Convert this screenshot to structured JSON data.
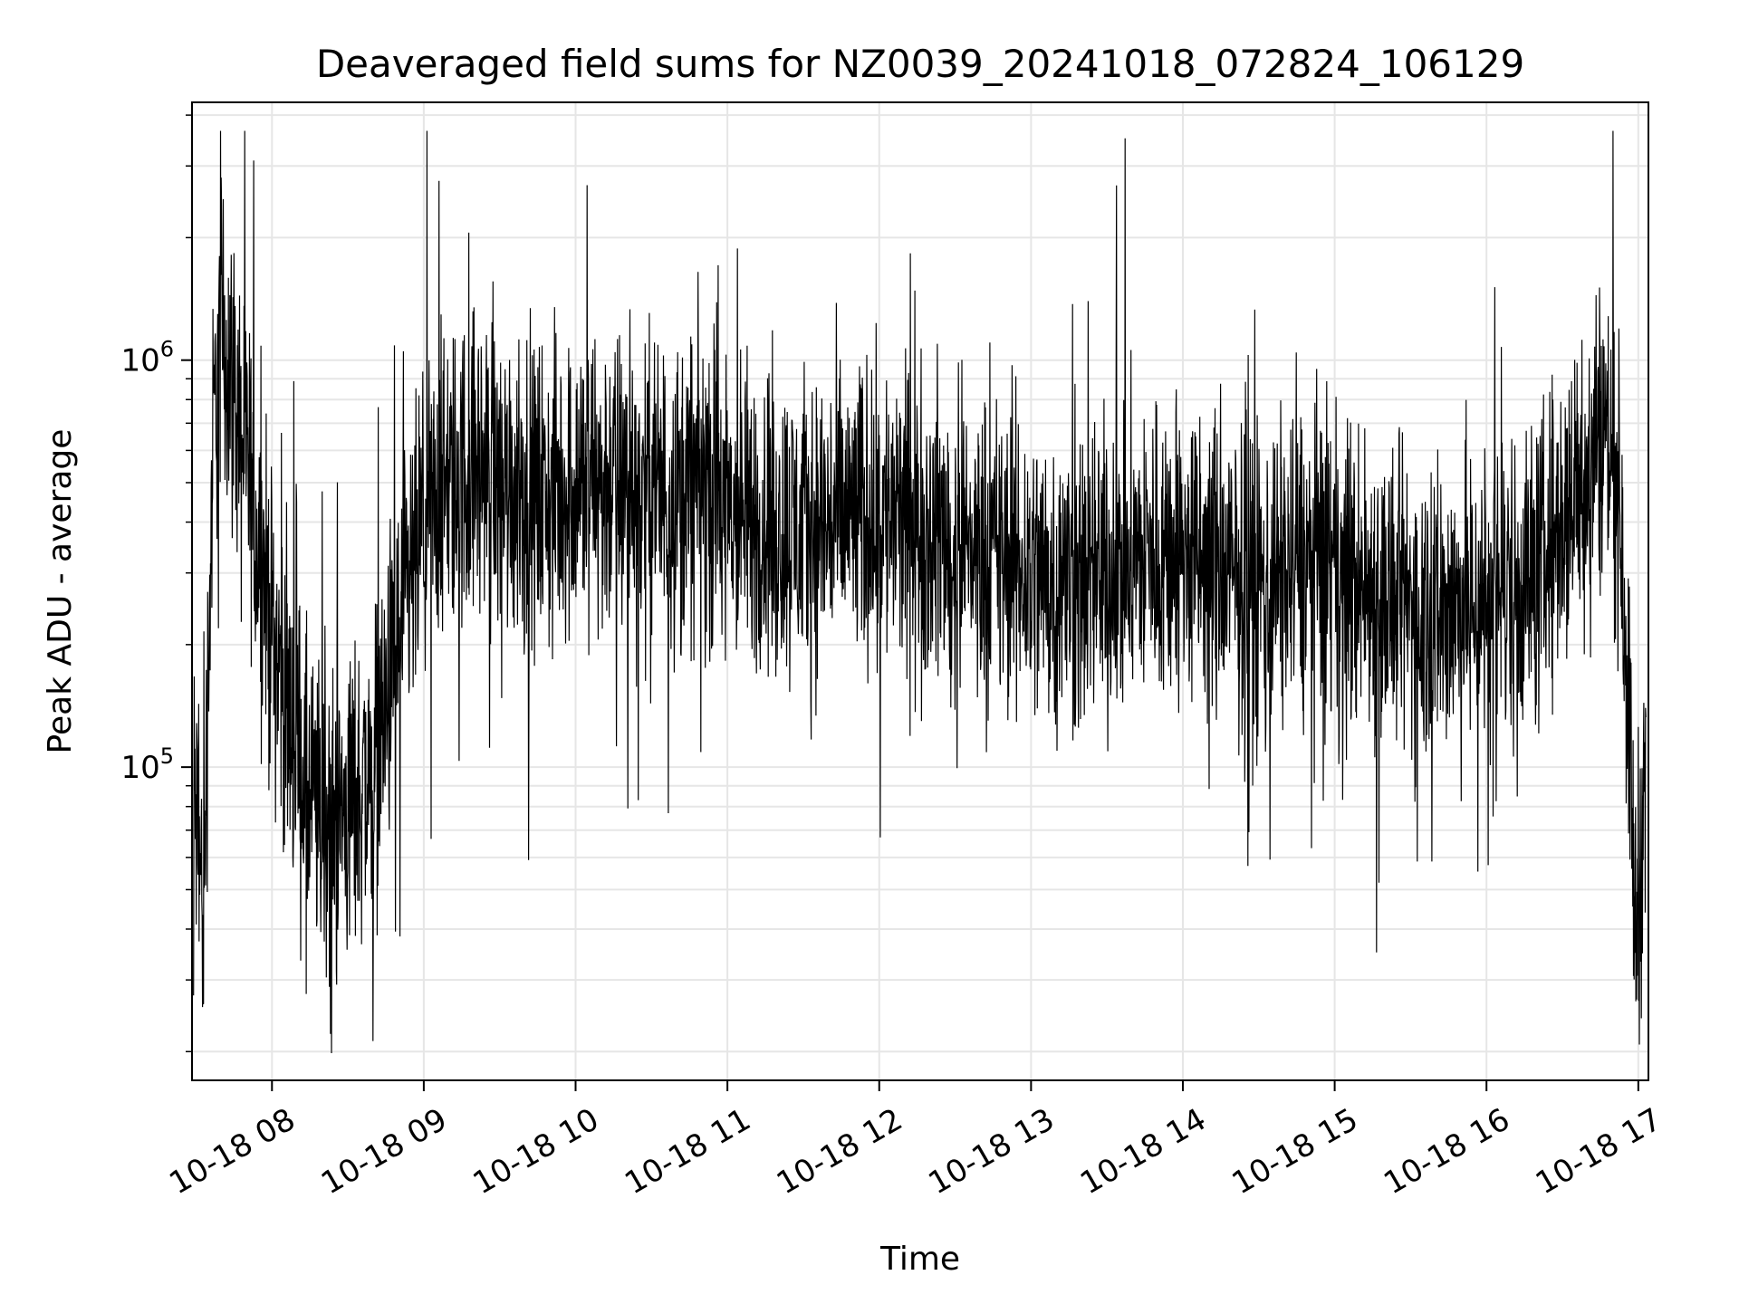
{
  "chart_data": {
    "type": "line",
    "title": "Deaveraged field sums for NZ0039_20241018_072824_106129",
    "xlabel": "Time",
    "ylabel": "Peak ADU - average",
    "yscale": "log",
    "ylim": [
      17000,
      4300000
    ],
    "xlim": [
      "2024-10-18 07:28:24",
      "2024-10-18 17:04:00"
    ],
    "grid": true,
    "line_color": "#000000",
    "x_ticks": [
      "10-18 08",
      "10-18 09",
      "10-18 10",
      "10-18 11",
      "10-18 12",
      "10-18 13",
      "10-18 14",
      "10-18 15",
      "10-18 16",
      "10-18 17"
    ],
    "y_ticks": [
      {
        "base": "10",
        "exp": "5",
        "value": 100000
      },
      {
        "base": "10",
        "exp": "6",
        "value": 1000000
      }
    ],
    "series": [
      {
        "x": [
          "2024-10-18 07:29",
          "2024-10-18 07:31",
          "2024-10-18 07:33",
          "2024-10-18 07:35",
          "2024-10-18 07:37",
          "2024-10-18 07:40",
          "2024-10-18 07:44",
          "2024-10-18 07:48",
          "2024-10-18 07:52",
          "2024-10-18 07:56",
          "2024-10-18 08:00",
          "2024-10-18 08:05",
          "2024-10-18 08:10",
          "2024-10-18 08:15",
          "2024-10-18 08:20",
          "2024-10-18 08:25",
          "2024-10-18 08:30",
          "2024-10-18 08:35",
          "2024-10-18 08:40",
          "2024-10-18 08:45",
          "2024-10-18 08:50",
          "2024-10-18 08:55",
          "2024-10-18 09:00",
          "2024-10-18 09:10",
          "2024-10-18 09:20",
          "2024-10-18 09:30",
          "2024-10-18 09:40",
          "2024-10-18 09:50",
          "2024-10-18 10:00",
          "2024-10-18 10:10",
          "2024-10-18 10:20",
          "2024-10-18 10:30",
          "2024-10-18 10:40",
          "2024-10-18 10:50",
          "2024-10-18 11:00",
          "2024-10-18 11:10",
          "2024-10-18 11:20",
          "2024-10-18 11:30",
          "2024-10-18 11:40",
          "2024-10-18 11:50",
          "2024-10-18 12:00",
          "2024-10-18 12:10",
          "2024-10-18 12:20",
          "2024-10-18 12:30",
          "2024-10-18 12:40",
          "2024-10-18 12:50",
          "2024-10-18 13:00",
          "2024-10-18 13:10",
          "2024-10-18 13:20",
          "2024-10-18 13:30",
          "2024-10-18 13:40",
          "2024-10-18 13:50",
          "2024-10-18 14:00",
          "2024-10-18 14:10",
          "2024-10-18 14:20",
          "2024-10-18 14:30",
          "2024-10-18 14:40",
          "2024-10-18 14:50",
          "2024-10-18 15:00",
          "2024-10-18 15:10",
          "2024-10-18 15:20",
          "2024-10-18 15:30",
          "2024-10-18 15:40",
          "2024-10-18 15:50",
          "2024-10-18 16:00",
          "2024-10-18 16:10",
          "2024-10-18 16:20",
          "2024-10-18 16:30",
          "2024-10-18 16:40",
          "2024-10-18 16:45",
          "2024-10-18 16:50",
          "2024-10-18 16:53",
          "2024-10-18 16:55",
          "2024-10-18 16:57",
          "2024-10-18 16:59",
          "2024-10-18 17:01",
          "2024-10-18 17:03"
        ],
        "y": [
          90000,
          60000,
          45000,
          200000,
          700000,
          1200000,
          900000,
          700000,
          450000,
          320000,
          220000,
          150000,
          110000,
          80000,
          75000,
          70000,
          80000,
          90000,
          100000,
          140000,
          200000,
          280000,
          380000,
          480000,
          550000,
          500000,
          470000,
          450000,
          500000,
          520000,
          480000,
          460000,
          470000,
          500000,
          420000,
          400000,
          390000,
          380000,
          400000,
          410000,
          420000,
          390000,
          380000,
          360000,
          340000,
          320000,
          300000,
          290000,
          280000,
          300000,
          320000,
          340000,
          330000,
          310000,
          290000,
          280000,
          300000,
          320000,
          300000,
          280000,
          260000,
          250000,
          240000,
          250000,
          260000,
          280000,
          300000,
          400000,
          550000,
          700000,
          600000,
          400000,
          220000,
          90000,
          40000,
          60000,
          130000
        ],
        "variability": 0.9
      }
    ]
  }
}
